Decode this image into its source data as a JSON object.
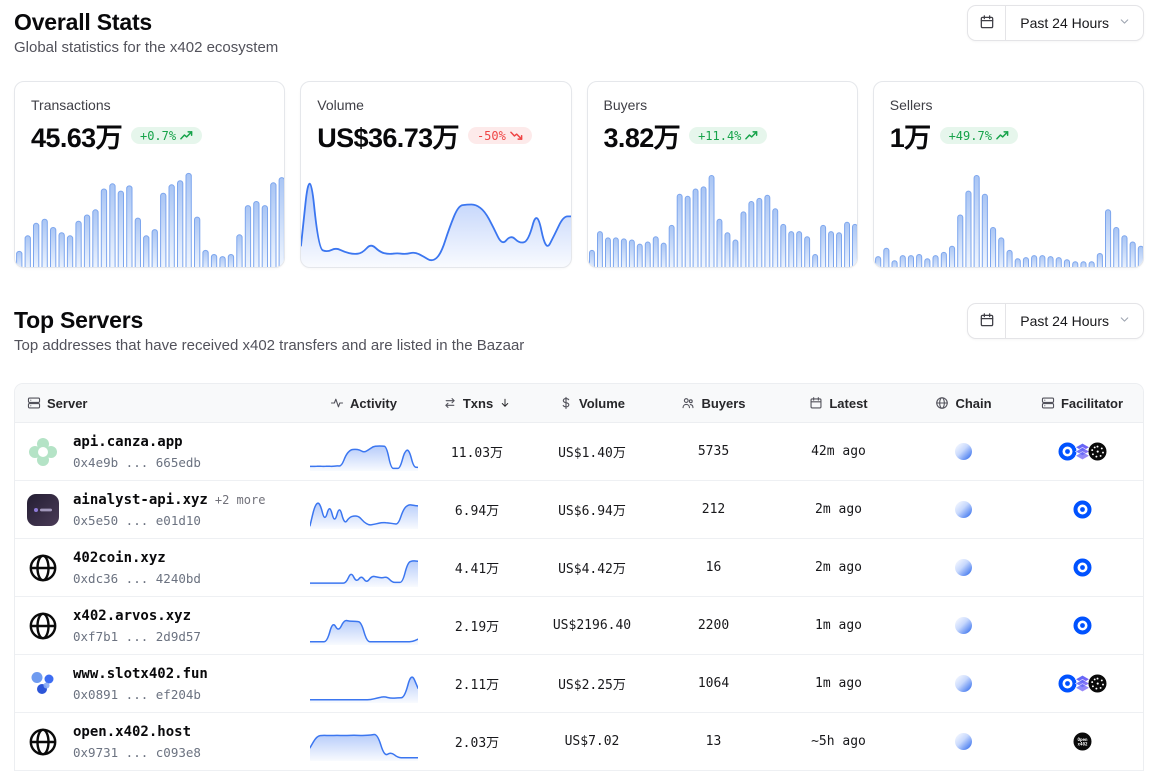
{
  "overall_stats": {
    "title": "Overall Stats",
    "subtitle": "Global statistics for the x402 ecosystem",
    "time_filter": {
      "label": "Past 24 Hours",
      "calendar_icon": "calendar-icon",
      "chevron_icon": "chevron-down-icon"
    }
  },
  "stat_cards": [
    {
      "label": "Transactions",
      "value": "45.63万",
      "change": "+0.7%",
      "trend": "up",
      "chart": {
        "type": "bar",
        "values": [
          15,
          30,
          42,
          46,
          38,
          33,
          30,
          44,
          50,
          55,
          75,
          80,
          73,
          78,
          47,
          30,
          36,
          71,
          79,
          83,
          90,
          48,
          16,
          12,
          10,
          12,
          31,
          59,
          63,
          59,
          81,
          86
        ]
      }
    },
    {
      "label": "Volume",
      "value": "US$36.73万",
      "change": "-50%",
      "trend": "down",
      "chart": {
        "type": "area",
        "values": [
          18,
          95,
          15,
          12,
          16,
          12,
          10,
          11,
          20,
          12,
          10,
          11,
          10,
          12,
          8,
          3,
          10,
          35,
          55,
          56,
          56,
          50,
          35,
          18,
          28,
          20,
          22,
          52,
          12,
          28,
          45,
          45
        ]
      }
    },
    {
      "label": "Buyers",
      "value": "3.82万",
      "change": "+11.4%",
      "trend": "up",
      "chart": {
        "type": "bar",
        "values": [
          16,
          34,
          28,
          28,
          27,
          26,
          22,
          24,
          29,
          23,
          40,
          70,
          68,
          75,
          77,
          88,
          46,
          33,
          26,
          53,
          63,
          66,
          69,
          56,
          41,
          34,
          34,
          29,
          12,
          40,
          34,
          33,
          43,
          41
        ]
      }
    },
    {
      "label": "Sellers",
      "value": "1万",
      "change": "+49.7%",
      "trend": "up",
      "chart": {
        "type": "bar",
        "values": [
          10,
          18,
          6,
          11,
          11,
          12,
          8,
          11,
          14,
          20,
          50,
          73,
          88,
          70,
          38,
          28,
          16,
          8,
          9,
          11,
          11,
          10,
          9,
          7,
          5,
          5,
          5,
          13,
          55,
          38,
          30,
          24,
          20
        ]
      }
    }
  ],
  "top_servers": {
    "title": "Top Servers",
    "subtitle": "Top addresses that have received x402 transfers and are listed in the Bazaar",
    "time_filter": {
      "label": "Past 24 Hours",
      "calendar_icon": "calendar-icon",
      "chevron_icon": "chevron-down-icon"
    },
    "columns": [
      {
        "id": "server",
        "label": "Server",
        "icon": "server-icon"
      },
      {
        "id": "activity",
        "label": "Activity",
        "icon": "activity-icon"
      },
      {
        "id": "txns",
        "label": "Txns",
        "icon": "swap-icon",
        "sort": "desc"
      },
      {
        "id": "volume",
        "label": "Volume",
        "icon": "dollar-icon"
      },
      {
        "id": "buyers",
        "label": "Buyers",
        "icon": "people-icon"
      },
      {
        "id": "latest",
        "label": "Latest",
        "icon": "calendar-icon"
      },
      {
        "id": "chain",
        "label": "Chain",
        "icon": "globe-icon"
      },
      {
        "id": "facilitator",
        "label": "Facilitator",
        "icon": "stack-icon"
      }
    ],
    "rows": [
      {
        "name": "api.canza.app",
        "extra": "",
        "address": "0x4e9b ... 665edb",
        "avatar": "canza-logo",
        "activity": [
          8,
          8,
          9,
          8,
          9,
          8,
          10,
          9,
          45,
          60,
          62,
          60,
          52,
          60,
          70,
          72,
          72,
          70,
          2,
          2,
          2,
          55,
          62,
          6,
          5
        ],
        "txns": "11.03万",
        "volume": "US$1.40万",
        "buyers": "5735",
        "latest": "42m ago",
        "chain": "base-sphere",
        "facilitators": [
          "coinbase-icon",
          "layers-icon",
          "dotted-sphere-icon"
        ]
      },
      {
        "name": "ainalyst-api.xyz",
        "extra": "+2 more",
        "address": "0x5e50 ... e01d10",
        "avatar": "ainalyst-logo",
        "activity": [
          4,
          70,
          78,
          15,
          72,
          10,
          68,
          8,
          30,
          35,
          33,
          15,
          6,
          8,
          12,
          14,
          13,
          10,
          9,
          55,
          70,
          68,
          66
        ],
        "txns": "6.94万",
        "volume": "US$6.94万",
        "buyers": "212",
        "latest": "2m ago",
        "chain": "base-sphere",
        "facilitators": [
          "coinbase-icon"
        ]
      },
      {
        "name": "402coin.xyz",
        "extra": "",
        "address": "0xdc36 ... 4240bd",
        "avatar": "globe",
        "activity": [
          6,
          6,
          6,
          6,
          6,
          6,
          6,
          6,
          42,
          8,
          30,
          6,
          28,
          25,
          22,
          26,
          8,
          8,
          8,
          70,
          76,
          74
        ],
        "txns": "4.41万",
        "volume": "US$4.42万",
        "buyers": "16",
        "latest": "2m ago",
        "chain": "base-sphere",
        "facilitators": [
          "coinbase-icon"
        ]
      },
      {
        "name": "x402.arvos.xyz",
        "extra": "",
        "address": "0xf7b1 ... 2d9d57",
        "avatar": "globe",
        "activity": [
          4,
          4,
          4,
          4,
          68,
          35,
          72,
          68,
          68,
          66,
          4,
          4,
          4,
          4,
          4,
          4,
          4,
          4,
          4,
          12
        ],
        "txns": "2.19万",
        "volume": "US$2196.40",
        "buyers": "2200",
        "latest": "1m ago",
        "chain": "base-sphere",
        "facilitators": [
          "coinbase-icon"
        ]
      },
      {
        "name": "www.slotx402.fun",
        "extra": "",
        "address": "0x0891 ... ef204b",
        "avatar": "slot-logo",
        "activity": [
          4,
          4,
          4,
          4,
          4,
          4,
          4,
          4,
          4,
          4,
          10,
          14,
          8,
          10,
          10,
          90,
          40
        ],
        "txns": "2.11万",
        "volume": "US$2.25万",
        "buyers": "1064",
        "latest": "1m ago",
        "chain": "base-sphere",
        "facilitators": [
          "coinbase-icon",
          "layers-icon",
          "dotted-sphere-icon"
        ]
      },
      {
        "name": "open.x402.host",
        "extra": "",
        "address": "0x9731 ... c093e8",
        "avatar": "globe",
        "activity": [
          35,
          72,
          74,
          73,
          74,
          73,
          74,
          74,
          73,
          75,
          78,
          8,
          22,
          4,
          4,
          4,
          4
        ],
        "txns": "2.03万",
        "volume": "US$7.02",
        "buyers": "13",
        "latest": "~5h ago",
        "chain": "base-sphere",
        "facilitators": [
          "openx402-icon"
        ]
      }
    ]
  },
  "colors": {
    "accent_blue": "#3b82f6",
    "coinbase_blue": "#0052ff",
    "badge_up": "#16a34a",
    "badge_down": "#ef4444",
    "bar_stroke": "#7da6ee"
  }
}
